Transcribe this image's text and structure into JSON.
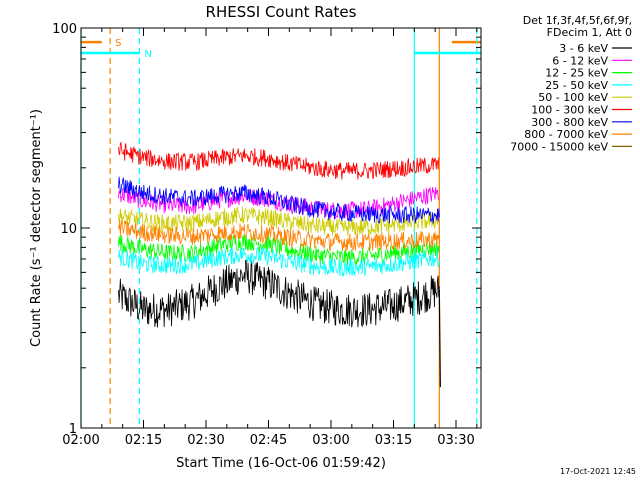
{
  "chart_data": {
    "type": "line",
    "title": "RHESSI Count Rates",
    "xlabel": "Start Time (16-Oct-06 01:59:42)",
    "ylabel": "Count Rate (s⁻¹ detector segment⁻¹)",
    "y_scale": "log",
    "xlim": [
      "02:00",
      "03:36"
    ],
    "ylim": [
      1,
      100
    ],
    "x_ticks": [
      "02:00",
      "02:15",
      "02:30",
      "02:45",
      "03:00",
      "03:15",
      "03:30"
    ],
    "y_ticks": [
      "1",
      "10",
      "100"
    ],
    "legend_header": [
      "Det 1f,3f,4f,5f,6f,9f,",
      "FDecim 1, Att 0"
    ],
    "legend_position": "right",
    "series": [
      {
        "name": "3 - 6 keV",
        "color": "#000000",
        "x": [
          "02:09",
          "02:15",
          "02:21",
          "02:27",
          "02:33",
          "02:39",
          "02:45",
          "02:51",
          "02:57",
          "03:03",
          "03:09",
          "03:15",
          "03:21",
          "03:26"
        ],
        "values": [
          4.6,
          3.9,
          3.9,
          4.3,
          5.1,
          5.8,
          5.3,
          4.6,
          4.1,
          3.9,
          3.9,
          4.1,
          4.5,
          4.9
        ]
      },
      {
        "name": "6 - 12 keV",
        "color": "#ff00ff",
        "x": [
          "02:09",
          "02:15",
          "02:21",
          "02:27",
          "02:33",
          "02:39",
          "02:45",
          "02:51",
          "02:57",
          "03:03",
          "03:09",
          "03:15",
          "03:21",
          "03:26"
        ],
        "values": [
          15.0,
          13.6,
          13.0,
          12.8,
          13.8,
          14.5,
          14.0,
          13.0,
          12.4,
          12.2,
          12.4,
          13.2,
          14.2,
          15.0
        ]
      },
      {
        "name": "12 - 25 keV",
        "color": "#00ff00",
        "x": [
          "02:09",
          "02:15",
          "02:21",
          "02:27",
          "02:33",
          "02:39",
          "02:45",
          "02:51",
          "02:57",
          "03:03",
          "03:09",
          "03:15",
          "03:21",
          "03:26"
        ],
        "values": [
          8.5,
          7.8,
          7.5,
          7.5,
          8.2,
          8.6,
          8.3,
          7.7,
          7.3,
          7.1,
          7.2,
          7.5,
          7.8,
          8.0
        ]
      },
      {
        "name": "25 - 50 keV",
        "color": "#00ffff",
        "x": [
          "02:09",
          "02:15",
          "02:21",
          "02:27",
          "02:33",
          "02:39",
          "02:45",
          "02:51",
          "02:57",
          "03:03",
          "03:09",
          "03:15",
          "03:21",
          "03:26"
        ],
        "values": [
          7.2,
          6.6,
          6.5,
          6.6,
          7.1,
          7.4,
          7.2,
          6.7,
          6.4,
          6.3,
          6.4,
          6.6,
          6.9,
          7.1
        ]
      },
      {
        "name": "50 - 100 keV",
        "color": "#cccc00",
        "x": [
          "02:09",
          "02:15",
          "02:21",
          "02:27",
          "02:33",
          "02:39",
          "02:45",
          "02:51",
          "02:57",
          "03:03",
          "03:09",
          "03:15",
          "03:21",
          "03:26"
        ],
        "values": [
          11.5,
          10.8,
          10.5,
          10.6,
          11.2,
          11.6,
          11.3,
          10.6,
          10.2,
          10.0,
          10.1,
          10.4,
          10.7,
          11.0
        ]
      },
      {
        "name": "100 - 300 keV",
        "color": "#ff0000",
        "x": [
          "02:09",
          "02:15",
          "02:21",
          "02:27",
          "02:33",
          "02:39",
          "02:45",
          "02:51",
          "02:57",
          "03:03",
          "03:09",
          "03:15",
          "03:21",
          "03:26"
        ],
        "values": [
          24.5,
          22.5,
          21.5,
          21.3,
          22.3,
          23.0,
          22.3,
          20.8,
          19.8,
          19.3,
          19.3,
          19.8,
          20.3,
          20.8
        ]
      },
      {
        "name": "300 - 800 keV",
        "color": "#0000ff",
        "x": [
          "02:09",
          "02:15",
          "02:21",
          "02:27",
          "02:33",
          "02:39",
          "02:45",
          "02:51",
          "02:57",
          "03:03",
          "03:09",
          "03:15",
          "03:21",
          "03:26"
        ],
        "values": [
          16.5,
          15.0,
          14.3,
          14.0,
          14.6,
          15.0,
          14.2,
          13.0,
          12.3,
          11.9,
          11.7,
          11.6,
          11.6,
          11.6
        ]
      },
      {
        "name": "800 - 7000 keV",
        "color": "#ff8000",
        "x": [
          "02:09",
          "02:15",
          "02:21",
          "02:27",
          "02:33",
          "02:39",
          "02:45",
          "02:51",
          "02:57",
          "03:03",
          "03:09",
          "03:15",
          "03:21",
          "03:26"
        ],
        "values": [
          10.0,
          9.5,
          9.2,
          9.1,
          9.4,
          9.6,
          9.3,
          8.9,
          8.6,
          8.5,
          8.5,
          8.6,
          8.7,
          8.8
        ]
      },
      {
        "name": "7000 - 15000 keV",
        "color": "#806000",
        "x": [],
        "values": []
      }
    ],
    "markers": [
      {
        "label": "S",
        "color": "#ff8000",
        "dashed_at": "02:07",
        "solid_at": "03:26",
        "bar_end_x": "02:05",
        "bar_start_x": "03:29",
        "bar_y": 85
      },
      {
        "label": "N",
        "color": "#00ffff",
        "dashed_at": "02:14",
        "solid_at": "03:20",
        "bar_end_x": "02:14",
        "bar_start_x": "03:20",
        "bar_y": 75
      },
      {
        "label": "",
        "color": "#00ffff",
        "dashed_at": "03:35",
        "solid_at": "02:00",
        "bar_end_x": "",
        "bar_start_x": "",
        "bar_y": null
      }
    ]
  },
  "footer": {
    "timestamp": "17-Oct-2021 12:45"
  }
}
